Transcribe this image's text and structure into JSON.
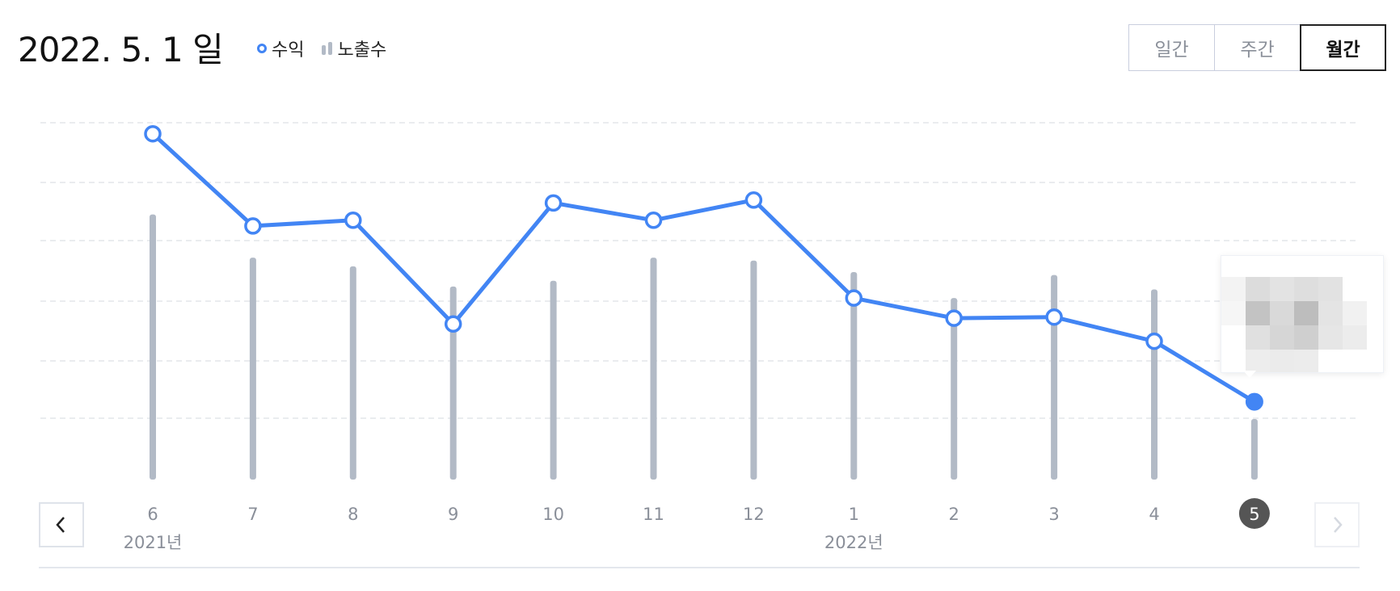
{
  "header": {
    "title": "2022. 5. 1 일"
  },
  "legend": {
    "revenue_label": "수익",
    "impressions_label": "노출수"
  },
  "period_tabs": {
    "daily": "일간",
    "weekly": "주간",
    "monthly": "월간",
    "selected": "월간"
  },
  "colors": {
    "line": "#4285f4",
    "bar": "#b2bac6",
    "grid": "#e3e6ea",
    "selected_badge": "#555555"
  },
  "icons": {
    "prev": "chevron-left-icon",
    "next": "chevron-right-icon"
  },
  "chart_data": {
    "type": "line",
    "categories": [
      "6",
      "7",
      "8",
      "9",
      "10",
      "11",
      "12",
      "1",
      "2",
      "3",
      "4",
      "5"
    ],
    "year_labels": [
      {
        "category": "6",
        "label": "2021년"
      },
      {
        "category": "1",
        "label": "2022년"
      }
    ],
    "selected_category": "5",
    "series": [
      {
        "type": "line",
        "values": [
          6.0,
          4.4,
          4.5,
          2.7,
          4.8,
          4.5,
          4.85,
          3.15,
          2.8,
          2.82,
          2.4,
          1.35
        ]
      },
      {
        "type": "bar",
        "values": [
          4.6,
          3.85,
          3.7,
          3.35,
          3.45,
          3.85,
          3.8,
          3.6,
          3.15,
          3.55,
          3.3,
          1.05
        ]
      }
    ],
    "ylim": [
      0,
      6.15
    ],
    "grid": true,
    "legend_position": "top-left"
  }
}
